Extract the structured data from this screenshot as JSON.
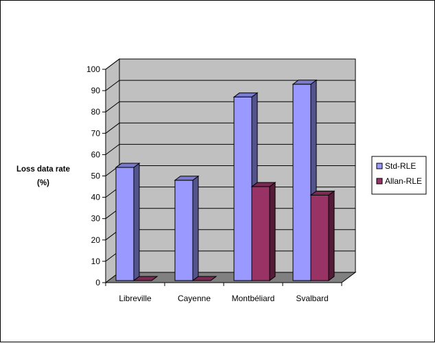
{
  "chart_data": {
    "type": "bar",
    "style": "3d-clustered-column",
    "categories": [
      "Libreville",
      "Cayenne",
      "Montbéliard",
      "Svalbard"
    ],
    "series": [
      {
        "name": "Std-RLE",
        "values": [
          54,
          48,
          87,
          93
        ],
        "color": "#9999ff"
      },
      {
        "name": "Allan-RLE",
        "values": [
          0,
          0,
          45,
          41
        ],
        "color": "#993366"
      }
    ],
    "ylabel_line1": "Loss data rate",
    "ylabel_line2": "(%)",
    "ylim": [
      0,
      100
    ],
    "ytick_step": 10,
    "grid": true,
    "legend_position": "right",
    "wall_color": "#c0c0c0",
    "floor_color": "#808080"
  }
}
